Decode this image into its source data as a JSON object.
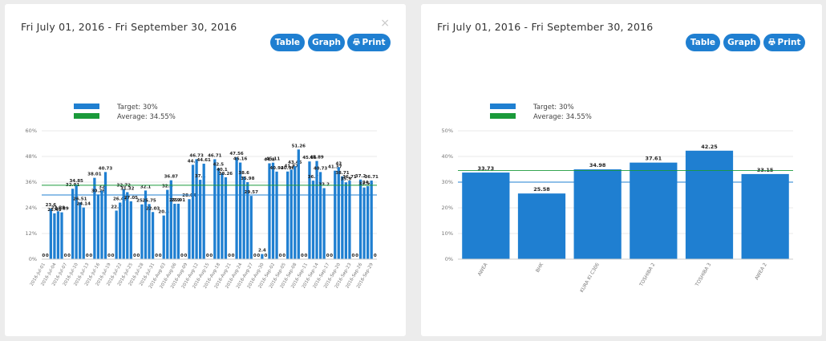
{
  "close": "×",
  "toolbar": [
    "Table",
    "Graph",
    "Print"
  ],
  "chart_data": [
    {
      "type": "bar",
      "title": "Fri July 01, 2016 - Fri September 30, 2016",
      "categories": [
        "2016-Jul-01",
        null,
        null,
        "2016-Jul-04",
        null,
        null,
        "2016-Jul-07",
        null,
        null,
        "2016-Jul-10",
        null,
        null,
        "2016-Jul-13",
        null,
        null,
        "2016-Jul-16",
        null,
        null,
        "2016-Jul-19",
        null,
        null,
        "2016-Jul-22",
        null,
        null,
        "2016-Jul-25",
        null,
        null,
        "2016-Jul-28",
        null,
        null,
        "2016-Jul-31",
        null,
        null,
        "2016-Aug-03",
        null,
        null,
        "2016-Aug-06",
        null,
        null,
        "2016-Aug-09",
        null,
        null,
        "2016-Aug-12",
        null,
        null,
        "2016-Aug-15",
        null,
        null,
        "2016-Aug-18",
        null,
        null,
        "2016-Aug-21",
        null,
        null,
        "2016-Aug-24",
        null,
        null,
        "2016-Aug-27",
        null,
        null,
        "2016-Aug-30",
        null,
        null,
        "2016-Sep-02",
        null,
        null,
        "2016-Sep-05",
        null,
        null,
        "2016-Sep-08",
        null,
        null,
        "2016-Sep-11",
        null,
        null,
        "2016-Sep-14",
        null,
        null,
        "2016-Sep-17",
        null,
        null,
        "2016-Sep-20",
        null,
        null,
        "2016-Sep-23",
        null,
        null,
        "2016-Sep-26",
        null,
        null,
        "2016-Sep-29",
        null
      ],
      "values": [
        0,
        0,
        23.6,
        21.43,
        22.38,
        21.89,
        0,
        0,
        32.91,
        34.85,
        26.51,
        24.14,
        0,
        0,
        38.01,
        30.26,
        32,
        40.73,
        0,
        0,
        22.7,
        26.43,
        32.72,
        31.32,
        27.05,
        0,
        0,
        25.6,
        32.1,
        25.75,
        22.03,
        0,
        0,
        20.4,
        32.4,
        36.87,
        25.9,
        25.91,
        0,
        0,
        28.04,
        44.1,
        46.73,
        37.1,
        44.61,
        0,
        0,
        46.71,
        42.5,
        40.1,
        38.26,
        0,
        0,
        47.56,
        45.16,
        38.6,
        35.98,
        29.57,
        0,
        0,
        2.4,
        0,
        44.8,
        45.11,
        40.92,
        0,
        0,
        40.96,
        41.87,
        43.45,
        51.26,
        0,
        0,
        45.66,
        36.7,
        45.89,
        40.73,
        33.2,
        0,
        0,
        41.37,
        43,
        38.71,
        35.9,
        36.71,
        0,
        0,
        37.2,
        33.5,
        34.1,
        36.71,
        0
      ],
      "color": "#1f7fd1",
      "ylim": [
        0,
        60
      ],
      "yticks": [
        {
          "value": 0,
          "label": "0%"
        },
        {
          "value": 12,
          "label": "12%"
        },
        {
          "value": 24,
          "label": "24%"
        },
        {
          "value": 36,
          "label": "36%"
        },
        {
          "value": 48,
          "label": "48%"
        },
        {
          "value": 60,
          "label": "60%"
        }
      ],
      "grid": true,
      "target": {
        "label": "Target: 30%",
        "value": 30,
        "color": "#1f7fd1"
      },
      "average": {
        "label": "Average: 34.55%",
        "value": 34.55,
        "color": "#1a9a3a"
      }
    },
    {
      "type": "bar",
      "title": "Fri July 01, 2016 - Fri September 30, 2016",
      "categories": [
        "AWEA",
        "BHK",
        "KURA KI C306",
        "TOSHIBA 2",
        "TOSHIBA 3",
        "AWEA 2"
      ],
      "values": [
        33.73,
        25.58,
        34.98,
        37.61,
        42.25,
        33.15
      ],
      "color": "#1f7fd1",
      "ylim": [
        0,
        50
      ],
      "yticks": [
        {
          "value": 0,
          "label": "0%"
        },
        {
          "value": 10,
          "label": "10%"
        },
        {
          "value": 20,
          "label": "20%"
        },
        {
          "value": 30,
          "label": "30%"
        },
        {
          "value": 40,
          "label": "40%"
        },
        {
          "value": 50,
          "label": "50%"
        }
      ],
      "grid": true,
      "target": {
        "label": "Target: 30%",
        "value": 30,
        "color": "#1f7fd1"
      },
      "average": {
        "label": "Average: 34.55%",
        "value": 34.55,
        "color": "#1a9a3a"
      }
    }
  ]
}
